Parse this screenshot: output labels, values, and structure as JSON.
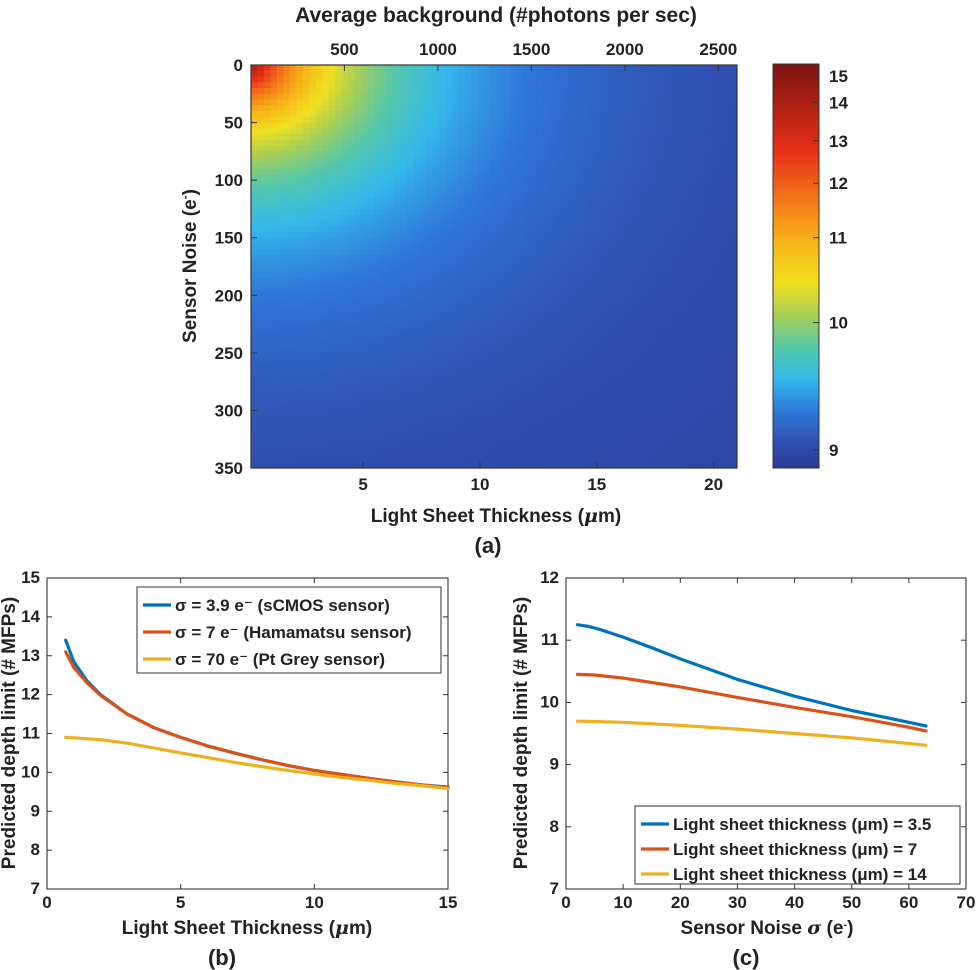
{
  "chart_data": [
    {
      "id": "a",
      "type": "heatmap",
      "panel_label": "(a)",
      "title": "Average background (#photons per sec)",
      "xlabel": "Light Sheet Thickness (μm)",
      "ylabel": "Sensor Noise (e⁻)",
      "xlim": [
        0.2,
        21
      ],
      "ylim": [
        350,
        0
      ],
      "x_ticks": [
        5,
        10,
        15,
        20
      ],
      "y_ticks": [
        0,
        50,
        100,
        150,
        200,
        250,
        300,
        350
      ],
      "top_axis": {
        "label": "Average background (#photons per sec)",
        "lim": [
          0,
          2600
        ],
        "ticks": [
          500,
          1000,
          1500,
          2000,
          2500
        ]
      },
      "colorbar": {
        "lim": [
          8.8,
          15.2
        ],
        "ticks": [
          9,
          10,
          11,
          12,
          13,
          14,
          15
        ],
        "colormap": "parula-jet"
      },
      "value_model": "≈ 8.9 + 6.3·exp(-(((x-0.2)/6.5)² + (y/95)²)^0.55·3)"
    },
    {
      "id": "b",
      "type": "line",
      "panel_label": "(b)",
      "xlabel": "Light Sheet Thickness (μm)",
      "ylabel": "Predicted depth limit (# MFPs)",
      "xlim": [
        0,
        15
      ],
      "ylim": [
        7,
        15
      ],
      "x_ticks": [
        0,
        5,
        10,
        15
      ],
      "y_ticks": [
        7,
        8,
        9,
        10,
        11,
        12,
        13,
        14,
        15
      ],
      "legend_position": "top-right",
      "series": [
        {
          "name": "σ = 3.9 e⁻ (sCMOS sensor)",
          "color": "#0072BD",
          "x": [
            0.7,
            1,
            1.5,
            2,
            3,
            4,
            5,
            6,
            7,
            8,
            9,
            10,
            11,
            12,
            13,
            14,
            15
          ],
          "y": [
            13.4,
            12.85,
            12.35,
            12.0,
            11.5,
            11.15,
            10.9,
            10.68,
            10.5,
            10.33,
            10.18,
            10.05,
            9.95,
            9.85,
            9.76,
            9.68,
            9.62
          ]
        },
        {
          "name": "σ =    7 e⁻ (Hamamatsu sensor)",
          "color": "#D95319",
          "x": [
            0.7,
            1,
            1.5,
            2,
            3,
            4,
            5,
            6,
            7,
            8,
            9,
            10,
            11,
            12,
            13,
            14,
            15
          ],
          "y": [
            13.1,
            12.7,
            12.3,
            11.98,
            11.5,
            11.15,
            10.9,
            10.68,
            10.5,
            10.33,
            10.18,
            10.05,
            9.95,
            9.85,
            9.76,
            9.68,
            9.6
          ]
        },
        {
          "name": "σ = 70 e⁻ (Pt Grey sensor)",
          "color": "#EDB120",
          "x": [
            0.7,
            1,
            2,
            3,
            4,
            5,
            6,
            7,
            8,
            9,
            10,
            11,
            12,
            13,
            14,
            15
          ],
          "y": [
            10.9,
            10.89,
            10.84,
            10.75,
            10.63,
            10.5,
            10.38,
            10.26,
            10.15,
            10.05,
            9.96,
            9.87,
            9.8,
            9.72,
            9.66,
            9.58
          ]
        }
      ]
    },
    {
      "id": "c",
      "type": "line",
      "panel_label": "(c)",
      "xlabel": "Sensor Noise σ (e⁻)",
      "ylabel": "Predicted depth limit (# MFPs)",
      "xlim": [
        0,
        70
      ],
      "ylim": [
        7,
        12
      ],
      "x_ticks": [
        0,
        10,
        20,
        30,
        40,
        50,
        60,
        70
      ],
      "y_ticks": [
        7,
        8,
        9,
        10,
        11,
        12
      ],
      "legend_position": "bottom-right",
      "series": [
        {
          "name": "Light sheet thickness (μm) = 3.5",
          "color": "#0072BD",
          "x": [
            2,
            4,
            6,
            10,
            15,
            20,
            30,
            40,
            50,
            60,
            63
          ],
          "y": [
            11.25,
            11.22,
            11.17,
            11.05,
            10.88,
            10.7,
            10.37,
            10.1,
            9.87,
            9.68,
            9.62
          ]
        },
        {
          "name": "Light sheet thickness (μm) = 7",
          "color": "#D95319",
          "x": [
            2,
            5,
            10,
            15,
            20,
            30,
            40,
            50,
            60,
            63
          ],
          "y": [
            10.45,
            10.44,
            10.39,
            10.32,
            10.25,
            10.08,
            9.92,
            9.77,
            9.6,
            9.54
          ]
        },
        {
          "name": "Light sheet thickness (μm) = 14",
          "color": "#EDB120",
          "x": [
            2,
            10,
            20,
            30,
            40,
            50,
            60,
            63
          ],
          "y": [
            9.7,
            9.68,
            9.63,
            9.57,
            9.5,
            9.43,
            9.34,
            9.31
          ]
        }
      ]
    }
  ]
}
